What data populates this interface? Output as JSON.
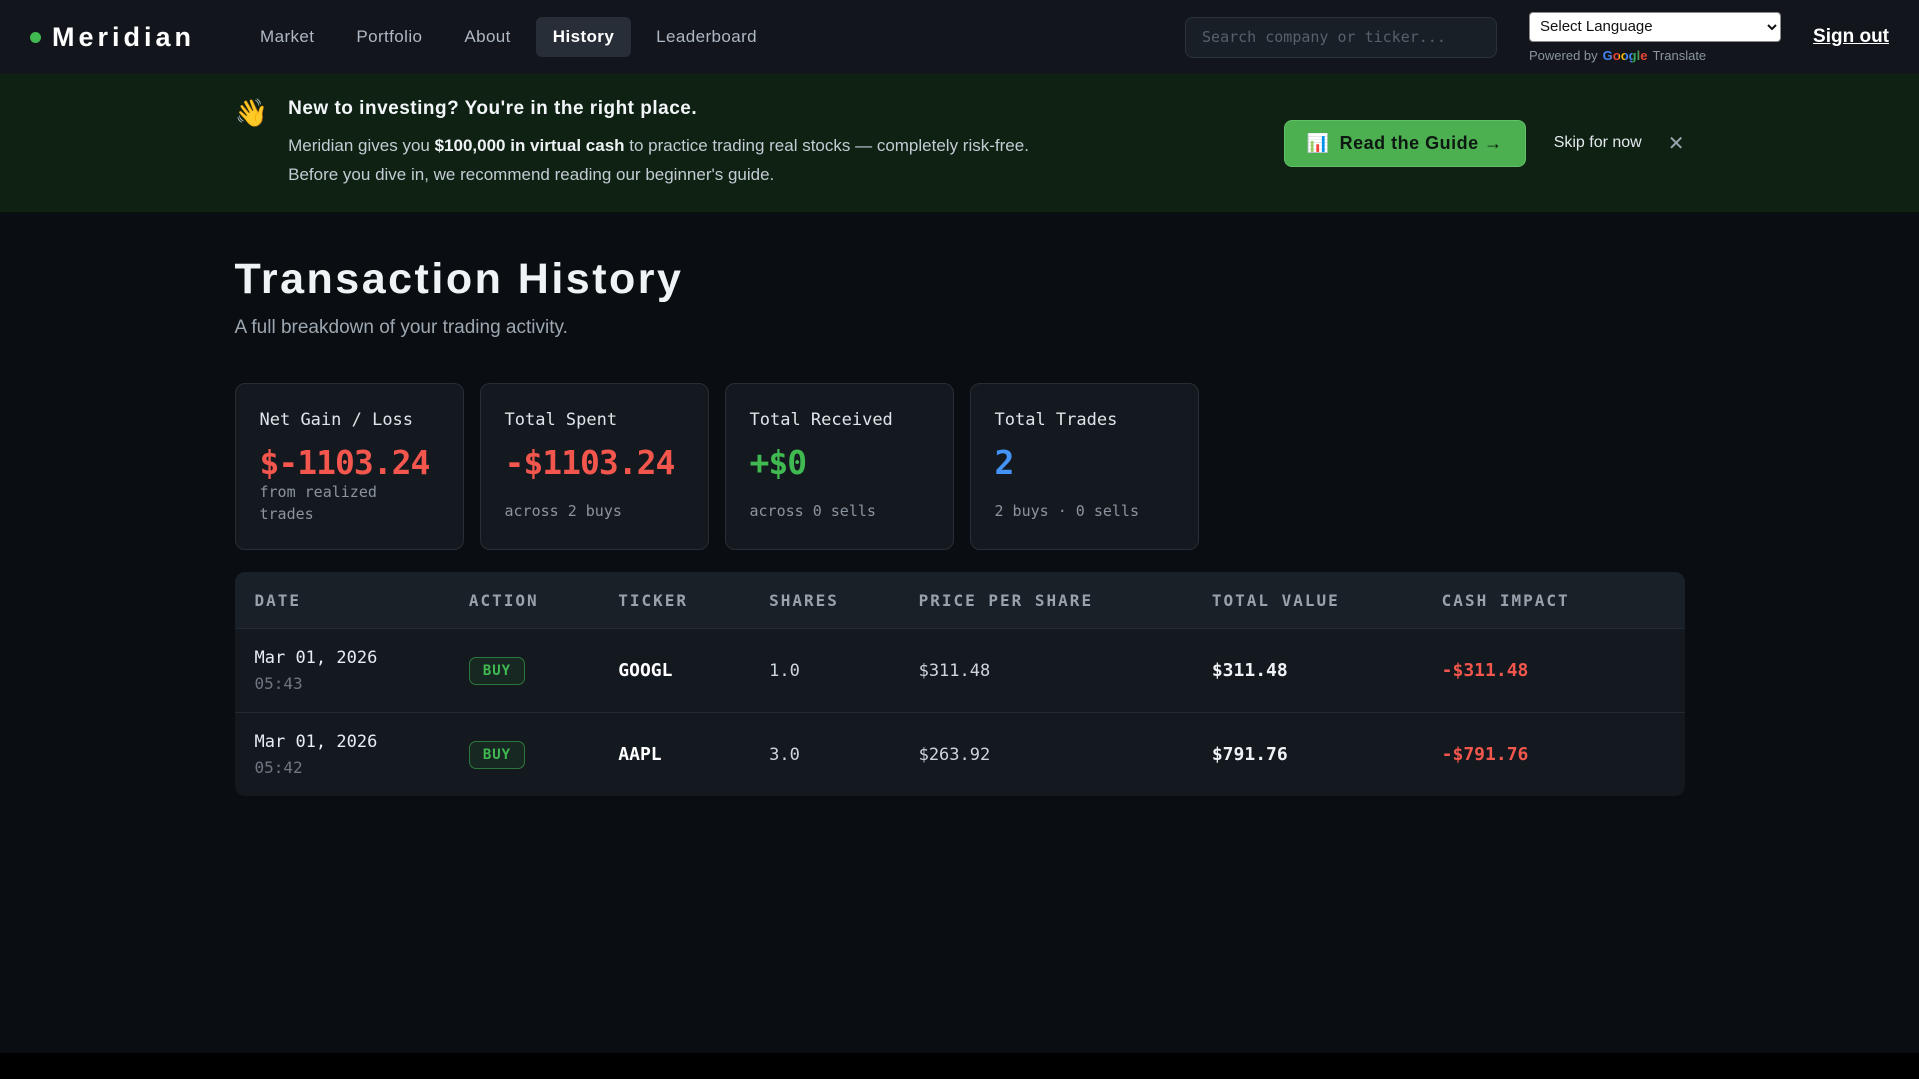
{
  "nav": {
    "brand": "Meridian",
    "items": [
      {
        "label": "Market"
      },
      {
        "label": "Portfolio"
      },
      {
        "label": "About"
      },
      {
        "label": "History"
      },
      {
        "label": "Leaderboard"
      }
    ],
    "active_item": "History",
    "search_placeholder": "Search company or ticker...",
    "language": {
      "selected": "Select Language",
      "powered_by": "Powered by",
      "brand": "Google",
      "suffix": "Translate"
    },
    "sign_out": "Sign out"
  },
  "banner": {
    "emoji": "👋",
    "heading": "New to investing? You're in the right place.",
    "body_pre": "Meridian gives you ",
    "body_bold": "$100,000 in virtual cash",
    "body_post": " to practice trading real stocks — completely risk-free.",
    "body_line2": "Before you dive in, we recommend reading our beginner's guide.",
    "cta_emoji": "📊",
    "cta_label": "Read the Guide →",
    "skip": "Skip for now",
    "close": "✕"
  },
  "page": {
    "title": "Transaction History",
    "subtitle": "A full breakdown of your trading activity."
  },
  "stats": [
    {
      "label": "Net Gain / Loss",
      "value": "$-1103.24",
      "sub": "from realized trades",
      "color": "red"
    },
    {
      "label": "Total Spent",
      "value": "-$1103.24",
      "sub": "across 2 buys",
      "color": "red"
    },
    {
      "label": "Total Received",
      "value": "+$0",
      "sub": "across 0 sells",
      "color": "green"
    },
    {
      "label": "Total Trades",
      "value": "2",
      "sub": "2 buys · 0 sells",
      "color": "blue"
    }
  ],
  "table": {
    "headers": [
      "DATE",
      "ACTION",
      "TICKER",
      "SHARES",
      "PRICE PER SHARE",
      "TOTAL VALUE",
      "CASH IMPACT"
    ],
    "rows": [
      {
        "date": "Mar 01, 2026",
        "time": "05:43",
        "action": "BUY",
        "ticker": "GOOGL",
        "shares": "1.0",
        "price": "$311.48",
        "total": "$311.48",
        "cash": "-$311.48"
      },
      {
        "date": "Mar 01, 2026",
        "time": "05:42",
        "action": "BUY",
        "ticker": "AAPL",
        "shares": "3.0",
        "price": "$263.92",
        "total": "$791.76",
        "cash": "-$791.76"
      }
    ]
  },
  "colors": {
    "accent_green": "#3fb950",
    "negative_red": "#f2564d",
    "info_blue": "#4493f8",
    "cta_green": "#4caf50",
    "banner_bg": "#0e2113",
    "page_bg": "#0a0d11"
  }
}
